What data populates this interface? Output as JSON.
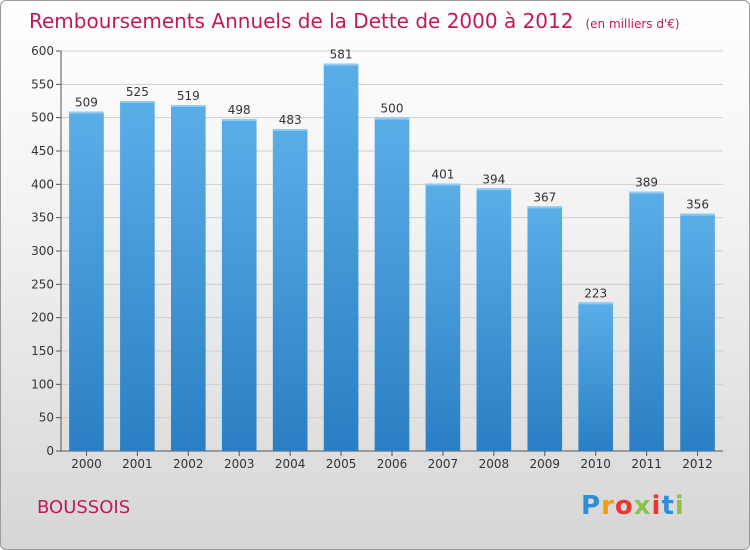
{
  "header": {
    "title": "Remboursements Annuels de la Dette de 2000 à 2012",
    "unit": "(en milliers d'€)"
  },
  "footer": {
    "town": "BOUSSOIS",
    "logo": "Proxiti"
  },
  "colors": {
    "bar_top": "#5aaee8",
    "bar_bottom": "#2a7fc4",
    "title": "#c2185b"
  },
  "chart_data": {
    "type": "bar",
    "title": "Remboursements Annuels de la Dette de 2000 à 2012",
    "xlabel": "",
    "ylabel": "",
    "categories": [
      "2000",
      "2001",
      "2002",
      "2003",
      "2004",
      "2005",
      "2006",
      "2007",
      "2008",
      "2009",
      "2010",
      "2011",
      "2012"
    ],
    "values": [
      509,
      525,
      519,
      498,
      483,
      581,
      500,
      401,
      394,
      367,
      223,
      389,
      356
    ],
    "ylim": [
      0,
      600
    ],
    "yticks": [
      0,
      50,
      100,
      150,
      200,
      250,
      300,
      350,
      400,
      450,
      500,
      550,
      600
    ],
    "grid": true,
    "legend": "none"
  }
}
